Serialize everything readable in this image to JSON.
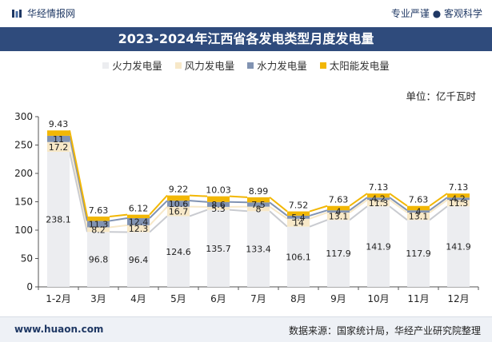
{
  "header": {
    "brand": "华经情报网",
    "tagline": "专业严谨 ● 客观科学"
  },
  "colors": {
    "fire": "#ecedf0",
    "wind": "#f7e8c8",
    "water": "#8193b2",
    "solar": "#f2b705",
    "titlebar": "#2f4b7c"
  },
  "chart_data": {
    "type": "bar",
    "stacked": true,
    "title": "2023-2024年江西省各发电类型月度发电量",
    "unit_label": "单位：亿千瓦时",
    "categories": [
      "1-2月",
      "3月",
      "4月",
      "5月",
      "6月",
      "7月",
      "8月",
      "9月",
      "10月",
      "11月",
      "12月"
    ],
    "ylim": [
      0,
      300
    ],
    "yticks": [
      0,
      50,
      100,
      150,
      200,
      250,
      300
    ],
    "legend_position": "top-center",
    "series": [
      {
        "name": "火力发电量",
        "color_key": "fire",
        "values": [
          238.1,
          96.8,
          96.4,
          124.6,
          135.7,
          133.4,
          106.1,
          117.9,
          141.9,
          117.9,
          141.9
        ]
      },
      {
        "name": "风力发电量",
        "color_key": "wind",
        "values": [
          17.2,
          8.2,
          12.3,
          16.7,
          5.3,
          8,
          14,
          13.1,
          11.3,
          13.1,
          11.3
        ]
      },
      {
        "name": "水力发电量",
        "color_key": "water",
        "values": [
          11,
          11.3,
          12.4,
          10.6,
          8.6,
          7.5,
          5.4,
          4,
          4.2,
          4,
          4.2
        ]
      },
      {
        "name": "太阳能发电量",
        "color_key": "solar",
        "values": [
          9.43,
          7.63,
          6.12,
          9.22,
          10.03,
          8.99,
          7.52,
          7.63,
          7.13,
          7.63,
          7.13
        ]
      }
    ]
  },
  "footer": {
    "site": "www.huaon.com",
    "source": "数据来源：国家统计局，华经产业研究院整理"
  }
}
